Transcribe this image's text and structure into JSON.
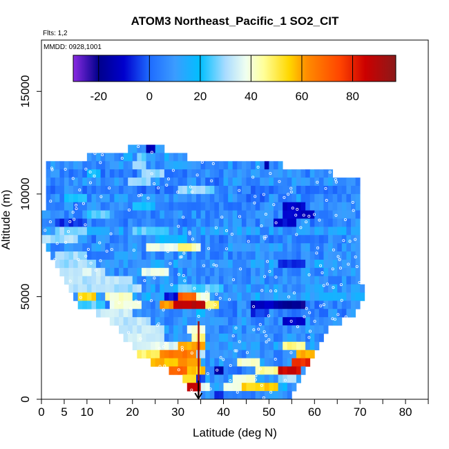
{
  "chart_data": {
    "type": "heatmap",
    "title": "ATOM3 Northeast_Pacific_1 SO2_CIT",
    "annotations": {
      "flights": "Flts: 1,2",
      "dates": "MMDD: 0928,1001"
    },
    "xlabel": "Latitude (deg N)",
    "ylabel": "Altitude (m)",
    "xlim": [
      0,
      85
    ],
    "ylim": [
      0,
      17500
    ],
    "x_ticks": [
      0,
      5,
      10,
      20,
      30,
      40,
      50,
      60,
      70,
      80
    ],
    "x_minor_ticks": [
      15,
      25,
      35,
      45,
      55,
      65,
      75,
      85
    ],
    "y_ticks": [
      0,
      5000,
      10000,
      15000
    ],
    "colorbar": {
      "range": [
        -30,
        97
      ],
      "ticks": [
        -20,
        0,
        20,
        40,
        60,
        80
      ],
      "stops": [
        {
          "v": -30,
          "c": "#8a2be2"
        },
        {
          "v": -20,
          "c": "#00008b"
        },
        {
          "v": -10,
          "c": "#0000cd"
        },
        {
          "v": 0,
          "c": "#1e6bff"
        },
        {
          "v": 10,
          "c": "#3b9cff"
        },
        {
          "v": 20,
          "c": "#00bfff"
        },
        {
          "v": 30,
          "c": "#aadcff"
        },
        {
          "v": 38,
          "c": "#f0fff0"
        },
        {
          "v": 45,
          "c": "#ffff99"
        },
        {
          "v": 55,
          "c": "#ffd700"
        },
        {
          "v": 62,
          "c": "#ff8c00"
        },
        {
          "v": 75,
          "c": "#ff4500"
        },
        {
          "v": 85,
          "c": "#cc0000"
        },
        {
          "v": 97,
          "c": "#8b1a1a"
        }
      ]
    },
    "bands": [
      {
        "alt": [
          12000,
          12400
        ],
        "lat": [
          19,
          27
        ],
        "base": 12,
        "spots": [
          {
            "lat": [
              23,
              24.5
            ],
            "v": -15
          }
        ]
      },
      {
        "alt": [
          11600,
          12000
        ],
        "lat": [
          10,
          32
        ],
        "base": 10,
        "spots": [
          {
            "lat": [
              21,
              23
            ],
            "v": 25
          }
        ]
      },
      {
        "alt": [
          11200,
          11600
        ],
        "lat": [
          1,
          53
        ],
        "base": 8,
        "spots": [
          {
            "lat": [
              39,
              41
            ],
            "v": 5
          },
          {
            "lat": [
              49,
              50
            ],
            "v": -15
          },
          {
            "lat": [
              20,
              23
            ],
            "v": 30
          }
        ]
      },
      {
        "alt": [
          10800,
          11200
        ],
        "lat": [
          1,
          64
        ],
        "base": 6,
        "spots": [
          {
            "lat": [
              10,
              13
            ],
            "v": 20
          },
          {
            "lat": [
              22,
              27
            ],
            "v": 28
          }
        ]
      },
      {
        "alt": [
          10400,
          10800
        ],
        "lat": [
          1,
          70
        ],
        "base": 8,
        "spots": [
          {
            "lat": [
              19,
              24
            ],
            "v": 30
          },
          {
            "lat": [
              36,
              40
            ],
            "v": 0
          }
        ]
      },
      {
        "alt": [
          10000,
          10400
        ],
        "lat": [
          1,
          70
        ],
        "base": 5,
        "spots": [
          {
            "lat": [
              30,
              38
            ],
            "v": 28
          }
        ]
      },
      {
        "alt": [
          9600,
          10000
        ],
        "lat": [
          1,
          70
        ],
        "base": 8,
        "spots": [
          {
            "lat": [
              5,
              10
            ],
            "v": 22
          },
          {
            "lat": [
              45,
              50
            ],
            "v": 0
          }
        ]
      },
      {
        "alt": [
          9200,
          9600
        ],
        "lat": [
          1,
          70
        ],
        "base": 6,
        "spots": [
          {
            "lat": [
              53,
              58
            ],
            "v": -10
          },
          {
            "lat": [
              20,
              25
            ],
            "v": 20
          }
        ]
      },
      {
        "alt": [
          8800,
          9200
        ],
        "lat": [
          0,
          70
        ],
        "base": 7,
        "spots": [
          {
            "lat": [
              53,
              60
            ],
            "v": -12
          },
          {
            "lat": [
              10,
              15
            ],
            "v": 25
          }
        ]
      },
      {
        "alt": [
          8400,
          8800
        ],
        "lat": [
          0,
          70
        ],
        "base": 6,
        "spots": [
          {
            "lat": [
              3,
              10
            ],
            "v": -5
          },
          {
            "lat": [
              51,
              56
            ],
            "v": -10
          }
        ]
      },
      {
        "alt": [
          8000,
          8400
        ],
        "lat": [
          0,
          70
        ],
        "base": 10,
        "spots": [
          {
            "lat": [
              3,
              10
            ],
            "v": 28
          },
          {
            "lat": [
              20,
              28
            ],
            "v": 26
          }
        ]
      },
      {
        "alt": [
          7600,
          8000
        ],
        "lat": [
          0,
          70
        ],
        "base": 6,
        "spots": [
          {
            "lat": [
              0,
              8
            ],
            "v": 30
          },
          {
            "lat": [
              25,
              32
            ],
            "v": 18
          }
        ]
      },
      {
        "alt": [
          7200,
          7600
        ],
        "lat": [
          1,
          70
        ],
        "base": 8,
        "spots": [
          {
            "lat": [
              23,
              35
            ],
            "v": 38
          },
          {
            "lat": [
              30,
              34
            ],
            "v": 46
          }
        ]
      },
      {
        "alt": [
          6800,
          7200
        ],
        "lat": [
          2,
          70
        ],
        "base": 7,
        "spots": [
          {
            "lat": [
              3,
              10
            ],
            "v": 30
          }
        ]
      },
      {
        "alt": [
          6400,
          6800
        ],
        "lat": [
          3,
          70
        ],
        "base": 10,
        "spots": [
          {
            "lat": [
              3,
              12
            ],
            "v": 30
          },
          {
            "lat": [
              52,
              58
            ],
            "v": -5
          }
        ]
      },
      {
        "alt": [
          6000,
          6400
        ],
        "lat": [
          4,
          70
        ],
        "base": 8,
        "spots": [
          {
            "lat": [
              4,
              14
            ],
            "v": 34
          },
          {
            "lat": [
              22,
              28
            ],
            "v": 38
          }
        ]
      },
      {
        "alt": [
          5600,
          6000
        ],
        "lat": [
          5,
          70
        ],
        "base": 8,
        "spots": [
          {
            "lat": [
              5,
              20
            ],
            "v": 32
          }
        ]
      },
      {
        "alt": [
          5200,
          5600
        ],
        "lat": [
          6,
          71
        ],
        "base": 10,
        "spots": [
          {
            "lat": [
              6,
              22
            ],
            "v": 30
          },
          {
            "lat": [
              30,
              40
            ],
            "v": 25
          }
        ]
      },
      {
        "alt": [
          4800,
          5200
        ],
        "lat": [
          7,
          71
        ],
        "base": 12,
        "spots": [
          {
            "lat": [
              8,
              12
            ],
            "v": 55
          },
          {
            "lat": [
              14,
              20
            ],
            "v": 42
          },
          {
            "lat": [
              27,
              30
            ],
            "v": -8
          },
          {
            "lat": [
              30,
              34
            ],
            "v": 70
          },
          {
            "lat": [
              34,
              37
            ],
            "v": 40
          }
        ]
      },
      {
        "alt": [
          4400,
          4800
        ],
        "lat": [
          8,
          70
        ],
        "base": 6,
        "spots": [
          {
            "lat": [
              8,
              14
            ],
            "v": 25
          },
          {
            "lat": [
              15,
              22
            ],
            "v": 40
          },
          {
            "lat": [
              29,
              36
            ],
            "v": 88
          },
          {
            "lat": [
              26,
              29
            ],
            "v": 60
          },
          {
            "lat": [
              36,
              39
            ],
            "v": 50
          },
          {
            "lat": [
              52,
              58
            ],
            "v": -20
          },
          {
            "lat": [
              46,
              52
            ],
            "v": -12
          }
        ]
      },
      {
        "alt": [
          4000,
          4400
        ],
        "lat": [
          12,
          69
        ],
        "base": 6,
        "spots": [
          {
            "lat": [
              12,
              20
            ],
            "v": 33
          },
          {
            "lat": [
              34,
              36
            ],
            "v": 20
          },
          {
            "lat": [
              46,
              50
            ],
            "v": -5
          }
        ]
      },
      {
        "alt": [
          3600,
          4000
        ],
        "lat": [
          15,
          66
        ],
        "base": 8,
        "spots": [
          {
            "lat": [
              15,
              24
            ],
            "v": 32
          },
          {
            "lat": [
              53,
              58
            ],
            "v": -10
          }
        ]
      },
      {
        "alt": [
          3200,
          3600
        ],
        "lat": [
          17,
          63
        ],
        "base": 8,
        "spots": [
          {
            "lat": [
              17,
              27
            ],
            "v": 32
          },
          {
            "lat": [
              32,
              36
            ],
            "v": 38
          }
        ]
      },
      {
        "alt": [
          2800,
          3200
        ],
        "lat": [
          18,
          62
        ],
        "base": 8,
        "spots": [
          {
            "lat": [
              18,
              27
            ],
            "v": 35
          },
          {
            "lat": [
              33,
              36
            ],
            "v": 45
          }
        ]
      },
      {
        "alt": [
          2400,
          2800
        ],
        "lat": [
          20,
          61
        ],
        "base": 10,
        "spots": [
          {
            "lat": [
              20,
              30
            ],
            "v": 36
          },
          {
            "lat": [
              30,
              36
            ],
            "v": 60
          },
          {
            "lat": [
              53,
              58
            ],
            "v": 45
          }
        ]
      },
      {
        "alt": [
          2000,
          2400
        ],
        "lat": [
          21,
          60
        ],
        "base": 8,
        "spots": [
          {
            "lat": [
              21,
              26
            ],
            "v": 48
          },
          {
            "lat": [
              26,
              34
            ],
            "v": 65
          },
          {
            "lat": [
              34,
              36
            ],
            "v": 30
          },
          {
            "lat": [
              56,
              60
            ],
            "v": 60
          }
        ]
      },
      {
        "alt": [
          1600,
          2000
        ],
        "lat": [
          24,
          59
        ],
        "base": 8,
        "spots": [
          {
            "lat": [
              24,
              30
            ],
            "v": 58
          },
          {
            "lat": [
              30,
              35
            ],
            "v": 62
          },
          {
            "lat": [
              43,
              48
            ],
            "v": 40
          },
          {
            "lat": [
              55,
              59
            ],
            "v": 80
          }
        ]
      },
      {
        "alt": [
          1200,
          1600
        ],
        "lat": [
          28,
          58
        ],
        "base": 6,
        "spots": [
          {
            "lat": [
              28,
              32
            ],
            "v": 70
          },
          {
            "lat": [
              32,
              36
            ],
            "v": 55
          },
          {
            "lat": [
              38,
              40
            ],
            "v": -15
          },
          {
            "lat": [
              47,
              52
            ],
            "v": 45
          },
          {
            "lat": [
              52,
              57
            ],
            "v": 85
          }
        ]
      },
      {
        "alt": [
          800,
          1200
        ],
        "lat": [
          31,
          57
        ],
        "base": 8,
        "spots": [
          {
            "lat": [
              31,
              34
            ],
            "v": 55
          },
          {
            "lat": [
              34,
              36
            ],
            "v": -5
          },
          {
            "lat": [
              42,
              47
            ],
            "v": 40
          },
          {
            "lat": [
              52,
              56
            ],
            "v": 30
          }
        ]
      },
      {
        "alt": [
          400,
          800
        ],
        "lat": [
          32,
          56
        ],
        "base": 12,
        "spots": [
          {
            "lat": [
              32,
              35
            ],
            "v": 88
          },
          {
            "lat": [
              35,
              37
            ],
            "v": 35
          },
          {
            "lat": [
              40,
              44
            ],
            "v": 40
          },
          {
            "lat": [
              44,
              52
            ],
            "v": 55
          }
        ]
      },
      {
        "alt": [
          0,
          400
        ],
        "lat": [
          35,
          55
        ],
        "base": 8,
        "spots": [
          {
            "lat": [
              38,
              40
            ],
            "v": -5
          },
          {
            "lat": [
              40,
              44
            ],
            "v": 5
          }
        ]
      }
    ],
    "vertical_track": {
      "lat": 34.5,
      "alt": [
        200,
        3800
      ],
      "v": 92
    },
    "marker": {
      "lat": 34.5,
      "label": "arrow"
    }
  }
}
